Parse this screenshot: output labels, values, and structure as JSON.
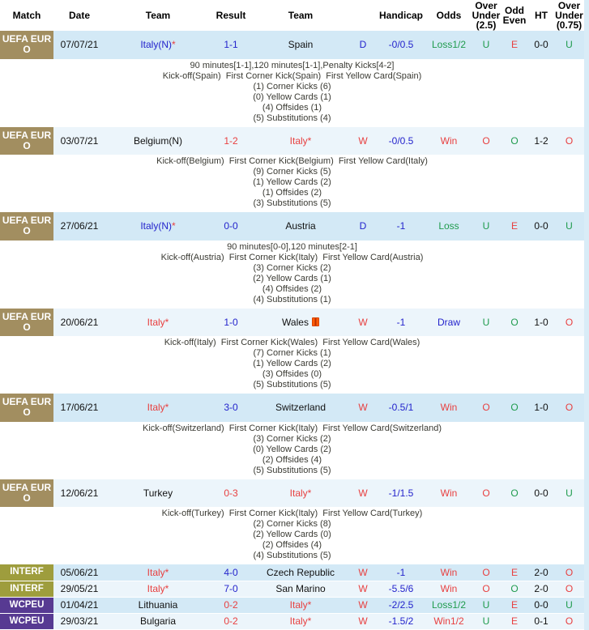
{
  "colors": {
    "blue": "#2323cc",
    "red": "#e84040",
    "green": "#1f9b4d",
    "row_blue": "#d3e9f6",
    "row_blue_light": "#ecf5fb",
    "euro_badge": "#a28e60",
    "interf_badge": "#9e9d3d",
    "wcpeu_badge": "#573a92"
  },
  "header": {
    "columns": [
      "Match",
      "Date",
      "Team",
      "Result",
      "Team",
      "",
      "Handicap",
      "Odds",
      "Over Under (2.5)",
      "Odd Even",
      "HT",
      "Over Under (0.75)"
    ]
  },
  "matches": [
    {
      "league": "UEFA EURO",
      "league_type": "euro",
      "date": "07/07/21",
      "team1": "Italy(N)",
      "team1_color": "blue",
      "team1_star": "*",
      "result": "1-1",
      "result_color": "blue",
      "team2": "Spain",
      "team2_color": "black",
      "team2_star": "",
      "team2_icon": "",
      "wdl": "D",
      "wdl_color": "blue",
      "handicap": "-0/0.5",
      "odds": "Loss1/2",
      "odds_color": "green",
      "ou25": "U",
      "ou25_color": "green",
      "oe": "E",
      "oe_color": "red",
      "ht": "0-0",
      "ou075": "U",
      "ou075_color": "green",
      "details": [
        "90 minutes[1-1],120 minutes[1-1],Penalty Kicks[4-2]",
        "Kick-off(Spain)  First Corner Kick(Spain)  First Yellow Card(Spain)",
        "(1) Corner Kicks (6)",
        "(0) Yellow Cards (1)",
        "(4) Offsides (1)",
        "(5) Substitutions (4)"
      ]
    },
    {
      "league": "UEFA EURO",
      "league_type": "euro",
      "date": "03/07/21",
      "team1": "Belgium(N)",
      "team1_color": "black",
      "team1_star": "",
      "result": "1-2",
      "result_color": "red",
      "team2": "Italy",
      "team2_color": "red",
      "team2_star": "*",
      "team2_icon": "",
      "wdl": "W",
      "wdl_color": "red",
      "handicap": "-0/0.5",
      "odds": "Win",
      "odds_color": "red",
      "ou25": "O",
      "ou25_color": "red",
      "oe": "O",
      "oe_color": "green",
      "ht": "1-2",
      "ou075": "O",
      "ou075_color": "red",
      "details": [
        "Kick-off(Belgium)  First Corner Kick(Belgium)  First Yellow Card(Italy)",
        "(9) Corner Kicks (5)",
        "(1) Yellow Cards (2)",
        "(1) Offsides (2)",
        "(3) Substitutions (5)"
      ]
    },
    {
      "league": "UEFA EURO",
      "league_type": "euro",
      "date": "27/06/21",
      "team1": "Italy(N)",
      "team1_color": "blue",
      "team1_star": "*",
      "result": "0-0",
      "result_color": "blue",
      "team2": "Austria",
      "team2_color": "black",
      "team2_star": "",
      "team2_icon": "",
      "wdl": "D",
      "wdl_color": "blue",
      "handicap": "-1",
      "odds": "Loss",
      "odds_color": "green",
      "ou25": "U",
      "ou25_color": "green",
      "oe": "E",
      "oe_color": "red",
      "ht": "0-0",
      "ou075": "U",
      "ou075_color": "green",
      "details": [
        "90 minutes[0-0],120 minutes[2-1]",
        "Kick-off(Austria)  First Corner Kick(Italy)  First Yellow Card(Austria)",
        "(3) Corner Kicks (2)",
        "(2) Yellow Cards (1)",
        "(4) Offsides (2)",
        "(4) Substitutions (1)"
      ]
    },
    {
      "league": "UEFA EURO",
      "league_type": "euro",
      "date": "20/06/21",
      "team1": "Italy",
      "team1_color": "red",
      "team1_star": "*",
      "result": "1-0",
      "result_color": "blue",
      "team2": "Wales",
      "team2_color": "black",
      "team2_star": "",
      "team2_icon": "red-card",
      "wdl": "W",
      "wdl_color": "red",
      "handicap": "-1",
      "odds": "Draw",
      "odds_color": "blue",
      "ou25": "U",
      "ou25_color": "green",
      "oe": "O",
      "oe_color": "green",
      "ht": "1-0",
      "ou075": "O",
      "ou075_color": "red",
      "details": [
        "Kick-off(Italy)  First Corner Kick(Wales)  First Yellow Card(Wales)",
        "(7) Corner Kicks (1)",
        "(1) Yellow Cards (2)",
        "(3) Offsides (0)",
        "(5) Substitutions (5)"
      ]
    },
    {
      "league": "UEFA EURO",
      "league_type": "euro",
      "date": "17/06/21",
      "team1": "Italy",
      "team1_color": "red",
      "team1_star": "*",
      "result": "3-0",
      "result_color": "blue",
      "team2": "Switzerland",
      "team2_color": "black",
      "team2_star": "",
      "team2_icon": "",
      "wdl": "W",
      "wdl_color": "red",
      "handicap": "-0.5/1",
      "odds": "Win",
      "odds_color": "red",
      "ou25": "O",
      "ou25_color": "red",
      "oe": "O",
      "oe_color": "green",
      "ht": "1-0",
      "ou075": "O",
      "ou075_color": "red",
      "details": [
        "Kick-off(Switzerland)  First Corner Kick(Italy)  First Yellow Card(Switzerland)",
        "(3) Corner Kicks (2)",
        "(0) Yellow Cards (2)",
        "(2) Offsides (4)",
        "(5) Substitutions (5)"
      ]
    },
    {
      "league": "UEFA EURO",
      "league_type": "euro",
      "date": "12/06/21",
      "team1": "Turkey",
      "team1_color": "black",
      "team1_star": "",
      "result": "0-3",
      "result_color": "red",
      "team2": "Italy",
      "team2_color": "red",
      "team2_star": "*",
      "team2_icon": "",
      "wdl": "W",
      "wdl_color": "red",
      "handicap": "-1/1.5",
      "odds": "Win",
      "odds_color": "red",
      "ou25": "O",
      "ou25_color": "red",
      "oe": "O",
      "oe_color": "green",
      "ht": "0-0",
      "ou075": "U",
      "ou075_color": "green",
      "details": [
        "Kick-off(Turkey)  First Corner Kick(Italy)  First Yellow Card(Turkey)",
        "(2) Corner Kicks (8)",
        "(2) Yellow Cards (0)",
        "(2) Offsides (4)",
        "(4) Substitutions (5)"
      ]
    },
    {
      "league": "INTERF",
      "league_type": "interf",
      "date": "05/06/21",
      "team1": "Italy",
      "team1_color": "red",
      "team1_star": "*",
      "result": "4-0",
      "result_color": "blue",
      "team2": "Czech Republic",
      "team2_color": "black",
      "team2_star": "",
      "team2_icon": "",
      "wdl": "W",
      "wdl_color": "red",
      "handicap": "-1",
      "odds": "Win",
      "odds_color": "red",
      "ou25": "O",
      "ou25_color": "red",
      "oe": "E",
      "oe_color": "red",
      "ht": "2-0",
      "ou075": "O",
      "ou075_color": "red",
      "details": []
    },
    {
      "league": "INTERF",
      "league_type": "interf",
      "date": "29/05/21",
      "team1": "Italy",
      "team1_color": "red",
      "team1_star": "*",
      "result": "7-0",
      "result_color": "blue",
      "team2": "San Marino",
      "team2_color": "black",
      "team2_star": "",
      "team2_icon": "",
      "wdl": "W",
      "wdl_color": "red",
      "handicap": "-5.5/6",
      "odds": "Win",
      "odds_color": "red",
      "ou25": "O",
      "ou25_color": "red",
      "oe": "O",
      "oe_color": "green",
      "ht": "2-0",
      "ou075": "O",
      "ou075_color": "red",
      "details": []
    },
    {
      "league": "WCPEU",
      "league_type": "wcpeu",
      "date": "01/04/21",
      "team1": "Lithuania",
      "team1_color": "black",
      "team1_star": "",
      "result": "0-2",
      "result_color": "red",
      "team2": "Italy",
      "team2_color": "red",
      "team2_star": "*",
      "team2_icon": "",
      "wdl": "W",
      "wdl_color": "red",
      "handicap": "-2/2.5",
      "odds": "Loss1/2",
      "odds_color": "green",
      "ou25": "U",
      "ou25_color": "green",
      "oe": "E",
      "oe_color": "red",
      "ht": "0-0",
      "ou075": "U",
      "ou075_color": "green",
      "details": []
    },
    {
      "league": "WCPEU",
      "league_type": "wcpeu",
      "date": "29/03/21",
      "team1": "Bulgaria",
      "team1_color": "black",
      "team1_star": "",
      "result": "0-2",
      "result_color": "red",
      "team2": "Italy",
      "team2_color": "red",
      "team2_star": "*",
      "team2_icon": "",
      "wdl": "W",
      "wdl_color": "red",
      "handicap": "-1.5/2",
      "odds": "Win1/2",
      "odds_color": "red",
      "ou25": "U",
      "ou25_color": "green",
      "oe": "E",
      "oe_color": "red",
      "ht": "0-1",
      "ou075": "O",
      "ou075_color": "red",
      "details": []
    }
  ]
}
